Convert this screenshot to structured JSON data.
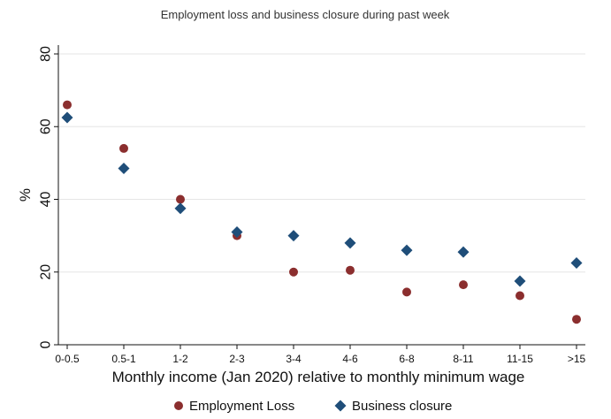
{
  "chart_data": {
    "type": "scatter",
    "title": "Employment loss and business closure during past week",
    "xlabel": "Monthly income (Jan 2020) relative to monthly minimum wage",
    "ylabel": "%",
    "categories": [
      "0-0.5",
      "0.5-1",
      "1-2",
      "2-3",
      "3-4",
      "4-6",
      "6-8",
      "8-11",
      "11-15",
      ">15"
    ],
    "ylim": [
      0,
      80
    ],
    "yticks": [
      0,
      20,
      40,
      60,
      80
    ],
    "grid": true,
    "legend": "bottom",
    "series": [
      {
        "name": "Employment Loss",
        "marker": "circle",
        "color": "#8b2e2e",
        "values": [
          66,
          54,
          40,
          30,
          20,
          20.5,
          14.5,
          16.5,
          13.5,
          7
        ]
      },
      {
        "name": "Business closure",
        "marker": "diamond",
        "color": "#1f4e79",
        "values": [
          62.5,
          48.5,
          37.5,
          31,
          30,
          28,
          26,
          25.5,
          17.5,
          22.5
        ]
      }
    ]
  }
}
